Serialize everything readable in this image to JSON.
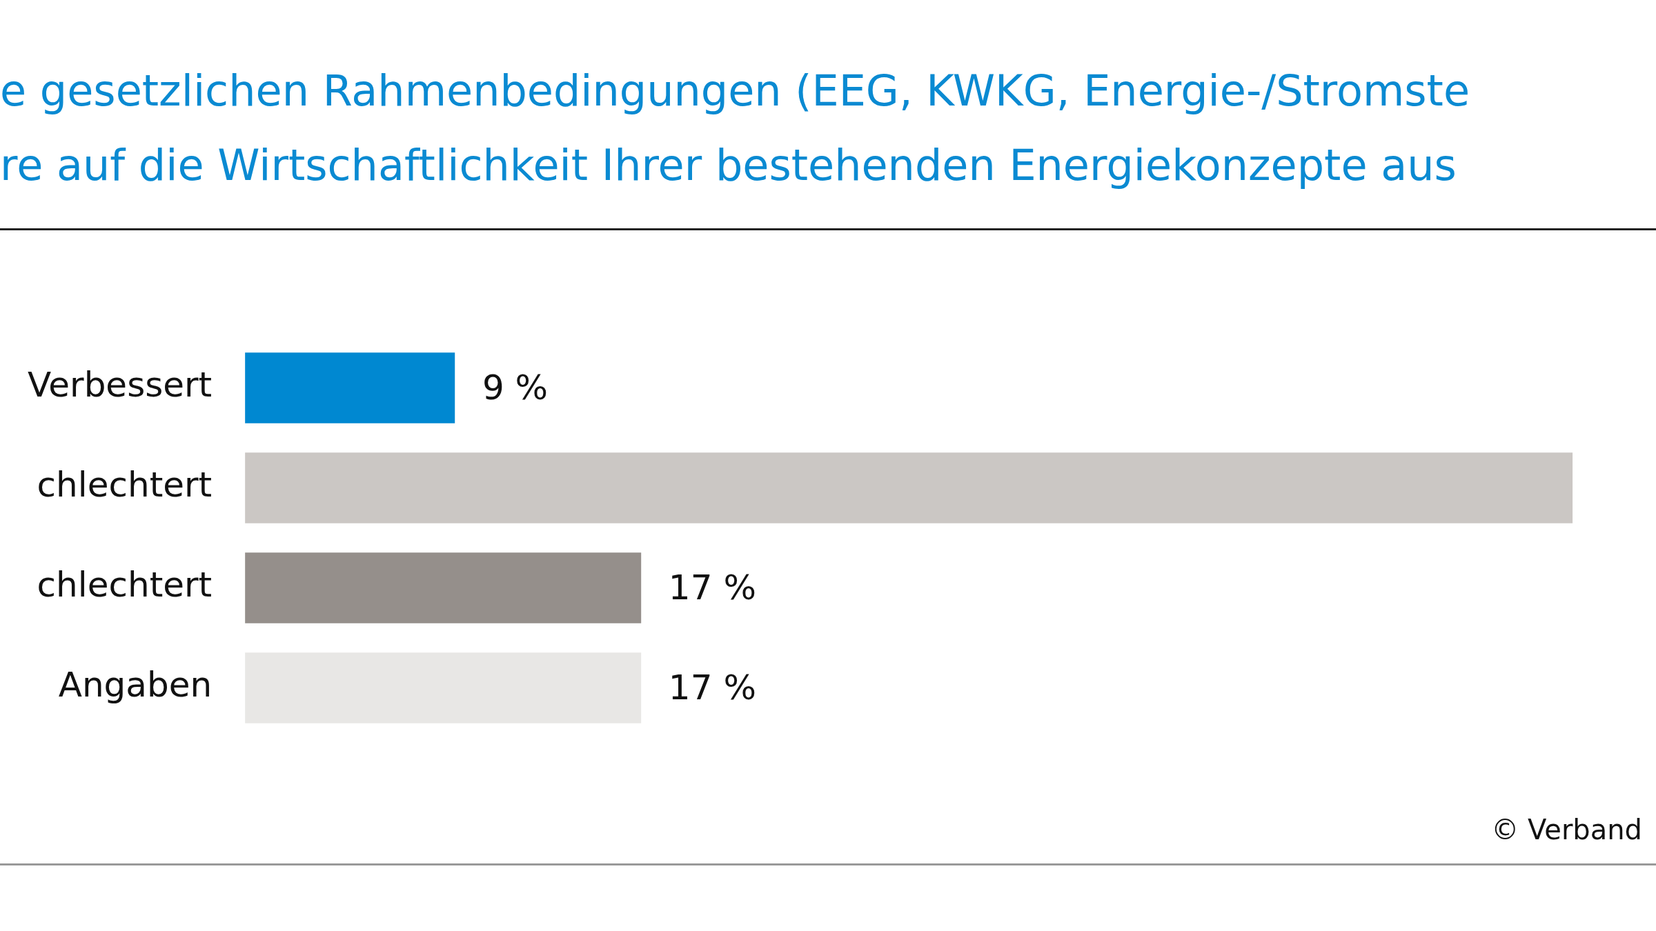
{
  "chart_data": {
    "type": "bar",
    "orientation": "horizontal",
    "title": "e gesetzlichen Rahmenbedingungen (EEG, KWKG, Energie-/Stromste\nre auf die Wirtschaftlichkeit Ihrer bestehenden Energiekonzepte aus",
    "categories": [
      "Verbessert",
      "chlechtert",
      "chlechtert",
      "Angaben"
    ],
    "values": [
      9,
      57,
      17,
      17
    ],
    "colors": [
      "#0088d1",
      "#cbc7c4",
      "#958f8b",
      "#e8e7e5"
    ],
    "value_labels": [
      "9 %",
      null,
      "17 %",
      "17 %"
    ],
    "legend": false,
    "annotations": [
      "© Verband"
    ]
  }
}
